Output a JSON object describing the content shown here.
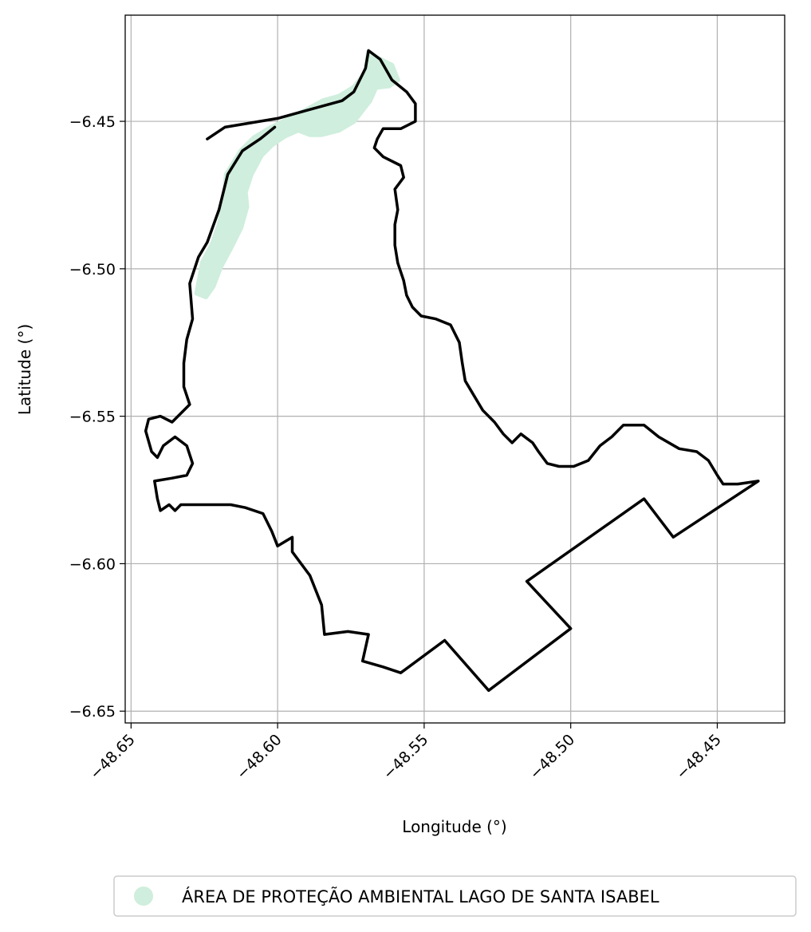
{
  "chart_data": {
    "type": "map",
    "xlabel": "Longitude (°)",
    "ylabel": "Latitude (°)",
    "xlim": [
      -48.652,
      -48.427
    ],
    "ylim": [
      -6.654,
      -6.414
    ],
    "xticks": [
      -48.65,
      -48.6,
      -48.55,
      -48.5,
      -48.45
    ],
    "xtick_labels": [
      "−48.65",
      "−48.60",
      "−48.55",
      "−48.50",
      "−48.45"
    ],
    "yticks": [
      -6.45,
      -6.5,
      -6.55,
      -6.6,
      -6.65
    ],
    "ytick_labels": [
      "−6.45",
      "−6.50",
      "−6.55",
      "−6.60",
      "−6.65"
    ],
    "grid": true,
    "legend_position": "bottom",
    "legend": [
      {
        "label": "ÁREA DE PROTEÇÃO AMBIENTAL LAGO DE SANTA ISABEL",
        "color": "#cfeedd"
      }
    ],
    "protected_area": {
      "fill": "#cfeedd",
      "coords": [
        [
          -48.6276,
          -6.5083
        ],
        [
          -48.6256,
          -6.4978
        ],
        [
          -48.6221,
          -6.4912
        ],
        [
          -48.62,
          -6.485
        ],
        [
          -48.6185,
          -6.479
        ],
        [
          -48.6175,
          -6.468
        ],
        [
          -48.6125,
          -6.46
        ],
        [
          -48.608,
          -6.4555
        ],
        [
          -48.603,
          -6.4525
        ],
        [
          -48.596,
          -6.449
        ],
        [
          -48.59,
          -6.446
        ],
        [
          -48.5845,
          -6.443
        ],
        [
          -48.579,
          -6.4415
        ],
        [
          -48.574,
          -6.4385
        ],
        [
          -48.57,
          -6.4335
        ],
        [
          -48.569,
          -6.4265
        ],
        [
          -48.567,
          -6.428
        ],
        [
          -48.561,
          -6.431
        ],
        [
          -48.559,
          -6.436
        ],
        [
          -48.562,
          -6.438
        ],
        [
          -48.5665,
          -6.4385
        ],
        [
          -48.5685,
          -6.443
        ],
        [
          -48.574,
          -6.45
        ],
        [
          -48.579,
          -6.453
        ],
        [
          -48.585,
          -6.4545
        ],
        [
          -48.589,
          -6.4545
        ],
        [
          -48.593,
          -6.453
        ],
        [
          -48.5975,
          -6.455
        ],
        [
          -48.602,
          -6.458
        ],
        [
          -48.6055,
          -6.4615
        ],
        [
          -48.609,
          -6.468
        ],
        [
          -48.611,
          -6.474
        ],
        [
          -48.6105,
          -6.479
        ],
        [
          -48.6125,
          -6.486
        ],
        [
          -48.616,
          -6.493
        ],
        [
          -48.6195,
          -6.4995
        ],
        [
          -48.622,
          -6.506
        ],
        [
          -48.6245,
          -6.5095
        ]
      ]
    },
    "boundary": {
      "stroke": "#000000",
      "coords": [
        [
          -48.624,
          -6.456
        ],
        [
          -48.618,
          -6.452
        ],
        [
          -48.6,
          -6.449
        ],
        [
          -48.578,
          -6.443
        ],
        [
          -48.574,
          -6.44
        ],
        [
          -48.57,
          -6.432
        ],
        [
          -48.569,
          -6.426
        ],
        [
          -48.565,
          -6.429
        ],
        [
          -48.561,
          -6.436
        ],
        [
          -48.556,
          -6.44
        ],
        [
          -48.553,
          -6.444
        ],
        [
          -48.553,
          -6.45
        ],
        [
          -48.558,
          -6.4525
        ],
        [
          -48.564,
          -6.4525
        ],
        [
          -48.566,
          -6.456
        ],
        [
          -48.567,
          -6.459
        ],
        [
          -48.564,
          -6.462
        ],
        [
          -48.558,
          -6.465
        ],
        [
          -48.557,
          -6.469
        ],
        [
          -48.56,
          -6.473
        ],
        [
          -48.559,
          -6.48
        ],
        [
          -48.56,
          -6.485
        ],
        [
          -48.56,
          -6.492
        ],
        [
          -48.559,
          -6.498
        ],
        [
          -48.557,
          -6.504
        ],
        [
          -48.556,
          -6.509
        ],
        [
          -48.554,
          -6.513
        ],
        [
          -48.551,
          -6.516
        ],
        [
          -48.546,
          -6.517
        ],
        [
          -48.541,
          -6.519
        ],
        [
          -48.538,
          -6.525
        ],
        [
          -48.537,
          -6.532
        ],
        [
          -48.536,
          -6.538
        ],
        [
          -48.533,
          -6.543
        ],
        [
          -48.53,
          -6.548
        ],
        [
          -48.526,
          -6.552
        ],
        [
          -48.523,
          -6.556
        ],
        [
          -48.52,
          -6.559
        ],
        [
          -48.517,
          -6.556
        ],
        [
          -48.513,
          -6.559
        ],
        [
          -48.511,
          -6.562
        ],
        [
          -48.508,
          -6.566
        ],
        [
          -48.504,
          -6.567
        ],
        [
          -48.499,
          -6.567
        ],
        [
          -48.494,
          -6.565
        ],
        [
          -48.49,
          -6.56
        ],
        [
          -48.486,
          -6.557
        ],
        [
          -48.482,
          -6.553
        ],
        [
          -48.475,
          -6.553
        ],
        [
          -48.47,
          -6.557
        ],
        [
          -48.463,
          -6.561
        ],
        [
          -48.457,
          -6.562
        ],
        [
          -48.453,
          -6.565
        ],
        [
          -48.45,
          -6.57
        ],
        [
          -48.448,
          -6.573
        ],
        [
          -48.443,
          -6.573
        ],
        [
          -48.436,
          -6.572
        ],
        [
          -48.465,
          -6.591
        ],
        [
          -48.475,
          -6.578
        ],
        [
          -48.515,
          -6.606
        ],
        [
          -48.5,
          -6.622
        ],
        [
          -48.528,
          -6.643
        ],
        [
          -48.543,
          -6.626
        ],
        [
          -48.558,
          -6.637
        ],
        [
          -48.564,
          -6.635
        ],
        [
          -48.571,
          -6.633
        ],
        [
          -48.569,
          -6.624
        ],
        [
          -48.576,
          -6.623
        ],
        [
          -48.584,
          -6.624
        ],
        [
          -48.585,
          -6.614
        ],
        [
          -48.589,
          -6.604
        ],
        [
          -48.595,
          -6.596
        ],
        [
          -48.595,
          -6.591
        ],
        [
          -48.6,
          -6.594
        ],
        [
          -48.602,
          -6.589
        ],
        [
          -48.605,
          -6.583
        ],
        [
          -48.611,
          -6.581
        ],
        [
          -48.616,
          -6.58
        ],
        [
          -48.62,
          -6.58
        ],
        [
          -48.625,
          -6.58
        ],
        [
          -48.633,
          -6.58
        ],
        [
          -48.635,
          -6.582
        ],
        [
          -48.637,
          -6.58
        ],
        [
          -48.64,
          -6.582
        ],
        [
          -48.641,
          -6.578
        ],
        [
          -48.642,
          -6.572
        ],
        [
          -48.636,
          -6.571
        ],
        [
          -48.631,
          -6.57
        ],
        [
          -48.629,
          -6.566
        ],
        [
          -48.631,
          -6.56
        ],
        [
          -48.635,
          -6.557
        ],
        [
          -48.639,
          -6.56
        ],
        [
          -48.641,
          -6.564
        ],
        [
          -48.643,
          -6.562
        ],
        [
          -48.645,
          -6.555
        ],
        [
          -48.644,
          -6.551
        ],
        [
          -48.64,
          -6.55
        ],
        [
          -48.636,
          -6.552
        ],
        [
          -48.63,
          -6.546
        ],
        [
          -48.632,
          -6.54
        ],
        [
          -48.632,
          -6.532
        ],
        [
          -48.631,
          -6.524
        ],
        [
          -48.629,
          -6.517
        ],
        [
          -48.63,
          -6.505
        ],
        [
          -48.627,
          -6.496
        ],
        [
          -48.624,
          -6.491
        ],
        [
          -48.62,
          -6.48
        ],
        [
          -48.617,
          -6.468
        ],
        [
          -48.612,
          -6.46
        ],
        [
          -48.606,
          -6.456
        ],
        [
          -48.601,
          -6.452
        ]
      ]
    }
  }
}
